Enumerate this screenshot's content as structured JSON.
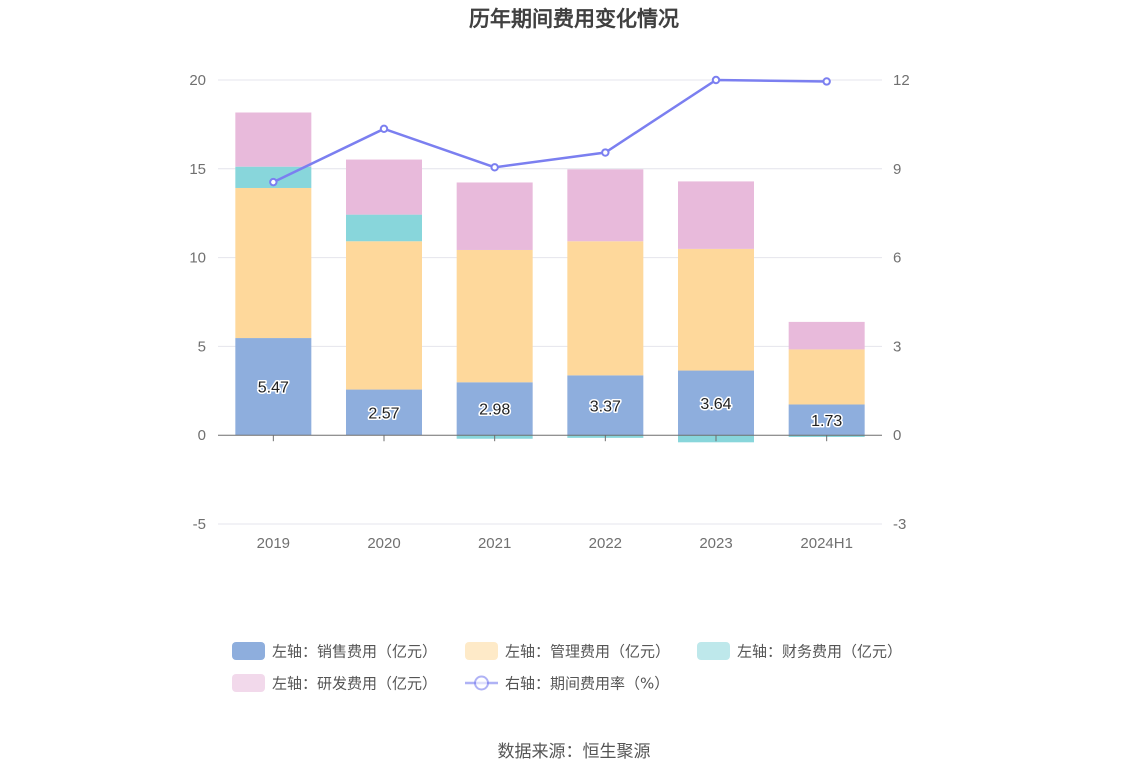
{
  "chart_data": {
    "type": "bar",
    "title": "历年期间费用变化情况",
    "categories": [
      "2019",
      "2020",
      "2021",
      "2022",
      "2023",
      "2024H1"
    ],
    "stacked": true,
    "y_left": {
      "ylim": [
        -5,
        20
      ],
      "ticks": [
        -5,
        0,
        5,
        10,
        15,
        20
      ]
    },
    "y_right": {
      "ylim": [
        -3,
        12
      ],
      "ticks": [
        -3,
        0,
        3,
        6,
        9,
        12
      ]
    },
    "grid": true,
    "series": [
      {
        "name": "左轴：销售费用（亿元）",
        "type": "bar",
        "axis": "left",
        "color": "#8eaedd",
        "values": [
          5.47,
          2.57,
          2.98,
          3.37,
          3.64,
          1.73
        ],
        "show_labels": true
      },
      {
        "name": "左轴：管理费用（亿元）",
        "type": "bar",
        "axis": "left",
        "color": "#fed89b",
        "values": [
          8.45,
          8.35,
          7.45,
          7.55,
          6.85,
          3.1
        ]
      },
      {
        "name": "左轴：财务费用（亿元）",
        "type": "bar",
        "axis": "left",
        "color": "#88d6db",
        "values": [
          1.2,
          1.5,
          -0.2,
          -0.15,
          -0.4,
          -0.1
        ]
      },
      {
        "name": "左轴：研发费用（亿元）",
        "type": "bar",
        "axis": "left",
        "color": "#e8badb",
        "values": [
          3.05,
          3.1,
          3.8,
          4.05,
          3.8,
          1.55
        ]
      },
      {
        "name": "右轴：期间费用率（%）",
        "type": "line",
        "axis": "right",
        "color": "#7b7ff0",
        "values": [
          8.55,
          10.35,
          9.05,
          9.55,
          12.0,
          11.95
        ]
      }
    ],
    "legend_position": "bottom"
  },
  "source": "数据来源：恒生聚源"
}
